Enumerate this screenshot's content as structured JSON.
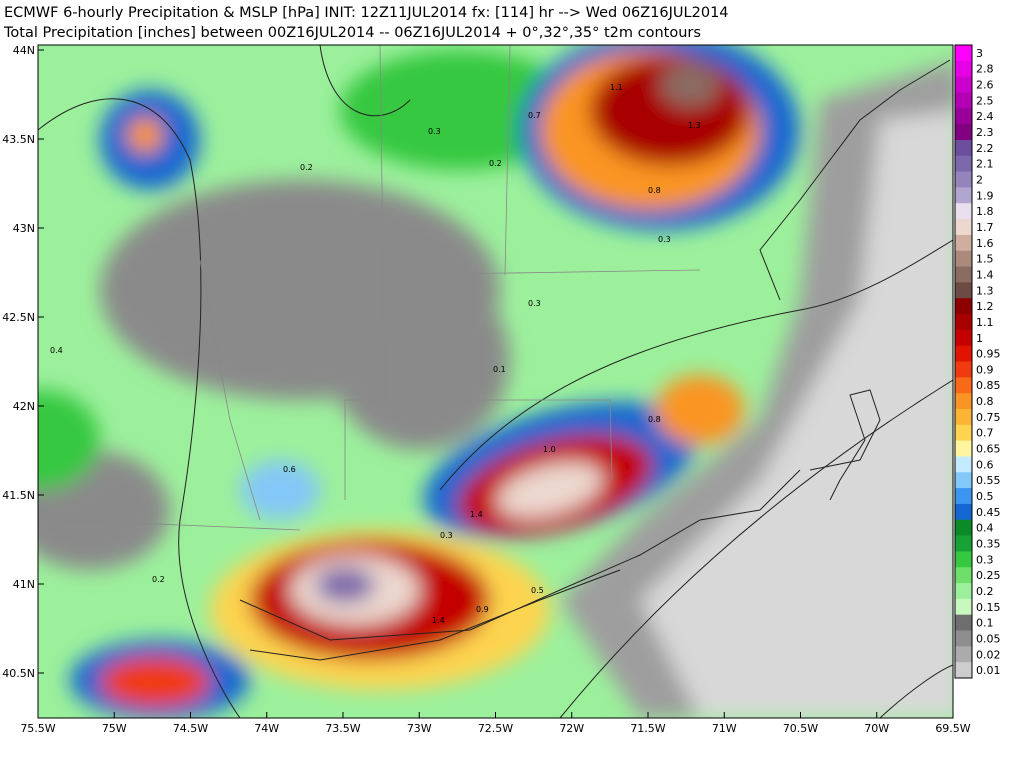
{
  "header": {
    "line1": "ECMWF 6-hourly Precipitation & MSLP [hPa] INIT: 12Z11JUL2014 fx: [114] hr --> Wed 06Z16JUL2014",
    "line2": "Total Precipitation [inches] between 00Z16JUL2014 -- 06Z16JUL2014   + 0°,32°,35° t2m contours"
  },
  "map": {
    "lat_labels": [
      "44N",
      "43.5N",
      "43N",
      "42.5N",
      "42N",
      "41.5N",
      "41N",
      "40.5N"
    ],
    "lon_labels": [
      "75.5W",
      "75W",
      "74.5W",
      "74W",
      "73.5W",
      "73W",
      "72.5W",
      "72W",
      "71.5W",
      "71W",
      "70.5W",
      "70W",
      "69.5W"
    ],
    "contour_labels": [
      "0.2",
      "0.3",
      "0.1",
      "0.6",
      "1.0",
      "1.4",
      "0.8",
      "0.3",
      "0.2",
      "0.9",
      "1.4",
      "0.5",
      "0.7",
      "0.2",
      "0.3",
      "0.4",
      "1.1",
      "1.3",
      "0.8",
      "0.3"
    ]
  },
  "colorbar": {
    "levels": [
      {
        "label": "3",
        "color": "#ff00ff"
      },
      {
        "label": "2.8",
        "color": "#e600e6"
      },
      {
        "label": "2.6",
        "color": "#cc00cc"
      },
      {
        "label": "2.5",
        "color": "#b300b3"
      },
      {
        "label": "2.4",
        "color": "#990099"
      },
      {
        "label": "2.3",
        "color": "#800080"
      },
      {
        "label": "2.2",
        "color": "#6b4f9e"
      },
      {
        "label": "2.1",
        "color": "#7c68aa"
      },
      {
        "label": "2",
        "color": "#9484bc"
      },
      {
        "label": "1.9",
        "color": "#b1a6cf"
      },
      {
        "label": "1.8",
        "color": "#e8e0ee"
      },
      {
        "label": "1.7",
        "color": "#ecd8cf"
      },
      {
        "label": "1.6",
        "color": "#cfae9f"
      },
      {
        "label": "1.5",
        "color": "#ab8a7c"
      },
      {
        "label": "1.4",
        "color": "#8a6c62"
      },
      {
        "label": "1.3",
        "color": "#6b4b44"
      },
      {
        "label": "1.2",
        "color": "#8c0000"
      },
      {
        "label": "1.1",
        "color": "#a80000"
      },
      {
        "label": "1",
        "color": "#c40000"
      },
      {
        "label": "0.95",
        "color": "#e01400"
      },
      {
        "label": "0.9",
        "color": "#f03a10"
      },
      {
        "label": "0.85",
        "color": "#f86a18"
      },
      {
        "label": "0.8",
        "color": "#fa9424"
      },
      {
        "label": "0.75",
        "color": "#fcb436"
      },
      {
        "label": "0.7",
        "color": "#fdd450"
      },
      {
        "label": "0.65",
        "color": "#fff4a0"
      },
      {
        "label": "0.6",
        "color": "#c4eaff"
      },
      {
        "label": "0.55",
        "color": "#82c8f8"
      },
      {
        "label": "0.5",
        "color": "#3c96ef"
      },
      {
        "label": "0.45",
        "color": "#1466d2"
      },
      {
        "label": "0.4",
        "color": "#0a8a28"
      },
      {
        "label": "0.35",
        "color": "#18a236"
      },
      {
        "label": "0.3",
        "color": "#36c840"
      },
      {
        "label": "0.25",
        "color": "#6ee06a"
      },
      {
        "label": "0.2",
        "color": "#9cf09c"
      },
      {
        "label": "0.15",
        "color": "#c8f8c0"
      },
      {
        "label": "0.1",
        "color": "#6e6e6e"
      },
      {
        "label": "0.05",
        "color": "#8e8e8e"
      },
      {
        "label": "0.02",
        "color": "#ababab"
      },
      {
        "label": "0.01",
        "color": "#cdcdcd"
      }
    ]
  }
}
